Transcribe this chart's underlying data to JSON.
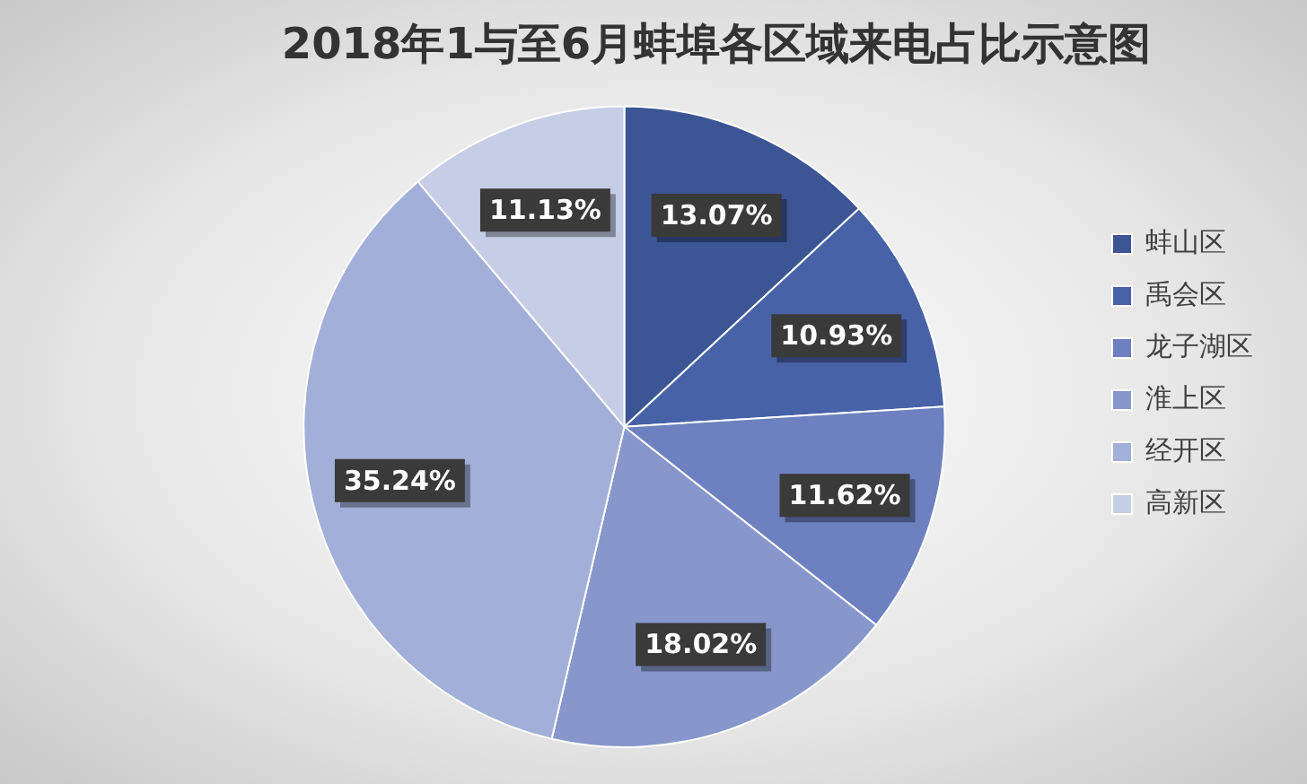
{
  "chart_data": {
    "type": "pie",
    "title": "2018年1与至6月蚌埠各区域来电占比示意图",
    "categories": [
      "蚌山区",
      "禹会区",
      "龙子湖区",
      "淮上区",
      "经开区",
      "高新区"
    ],
    "values": [
      13.07,
      10.93,
      11.62,
      18.02,
      35.24,
      11.13
    ],
    "colors": [
      "#3b5595",
      "#4862a8",
      "#6d80bf",
      "#8797cb",
      "#a2afd8",
      "#c6cde6"
    ],
    "value_labels": [
      "13.07%",
      "10.93%",
      "11.62%",
      "18.02%",
      "35.24%",
      "11.13%"
    ],
    "legend": "right"
  }
}
